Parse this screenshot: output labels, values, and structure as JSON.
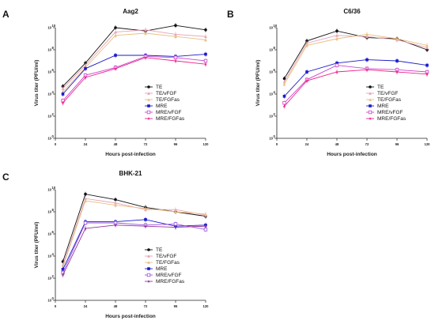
{
  "chart_data": [
    {
      "type": "line",
      "panel_label": "A",
      "title": "Aag2",
      "xlabel": "Hours post-infection",
      "ylabel": "Virus titer (PFU/ml)",
      "x": [
        6,
        24,
        48,
        72,
        96,
        120
      ],
      "x_ticks": [
        "0",
        "24",
        "48",
        "72",
        "96",
        "120"
      ],
      "ylim_log10": [
        0,
        10
      ],
      "yscale": "log",
      "series": [
        {
          "name": "TE",
          "color": "#111111",
          "marker": "circle",
          "values": [
            4.7,
            6.8,
            10.0,
            9.7,
            10.2,
            9.8
          ]
        },
        {
          "name": "TE/vFGF",
          "color": "#e8a0b4",
          "marker": "triangle",
          "values": [
            4.5,
            6.6,
            9.6,
            9.8,
            9.4,
            9.2
          ]
        },
        {
          "name": "TE/FGFas",
          "color": "#e8c080",
          "marker": "triangle",
          "values": [
            4.2,
            6.4,
            9.3,
            9.5,
            9.2,
            8.9
          ]
        },
        {
          "name": "MRE",
          "color": "#1a1acc",
          "marker": "square",
          "values": [
            4.0,
            6.3,
            7.5,
            7.5,
            7.4,
            7.6
          ]
        },
        {
          "name": "MRE/vFGF",
          "color": "#cc44cc",
          "marker": "square-open",
          "values": [
            3.4,
            5.7,
            6.4,
            7.4,
            7.3,
            7.0
          ]
        },
        {
          "name": "MRE/FGFas",
          "color": "#ee2288",
          "marker": "star",
          "values": [
            3.2,
            5.5,
            6.3,
            7.3,
            7.0,
            6.7
          ]
        }
      ]
    },
    {
      "type": "line",
      "panel_label": "B",
      "title": "C6/36",
      "xlabel": "Hours post-infection",
      "ylabel": "Virus titer (PFU/ml)",
      "x": [
        6,
        24,
        48,
        72,
        96,
        120
      ],
      "x_ticks": [
        "0",
        "24",
        "48",
        "72",
        "96",
        "120"
      ],
      "ylim_log10": [
        0,
        10
      ],
      "yscale": "log",
      "series": [
        {
          "name": "TE",
          "color": "#111111",
          "marker": "circle",
          "values": [
            5.4,
            8.8,
            9.7,
            9.1,
            9.0,
            8.0
          ]
        },
        {
          "name": "TE/vFGF",
          "color": "#e8a0b4",
          "marker": "triangle",
          "values": [
            5.1,
            8.6,
            9.3,
            9.2,
            8.9,
            8.2
          ]
        },
        {
          "name": "TE/FGFas",
          "color": "#e8c080",
          "marker": "triangle",
          "values": [
            4.9,
            8.4,
            9.0,
            9.4,
            9.0,
            8.4
          ]
        },
        {
          "name": "MRE",
          "color": "#1a1acc",
          "marker": "square",
          "values": [
            3.8,
            6.0,
            6.8,
            7.1,
            7.0,
            6.6
          ]
        },
        {
          "name": "MRE/vFGF",
          "color": "#cc44cc",
          "marker": "square-open",
          "values": [
            3.2,
            5.3,
            6.6,
            6.3,
            6.2,
            6.0
          ]
        },
        {
          "name": "MRE/FGFas",
          "color": "#ee2288",
          "marker": "star",
          "values": [
            2.9,
            5.2,
            6.0,
            6.2,
            6.0,
            5.8
          ]
        }
      ]
    },
    {
      "type": "line",
      "panel_label": "C",
      "title": "BHK-21",
      "xlabel": "Hours post-infection",
      "ylabel": "Virus titer (PFU/ml)",
      "x": [
        6,
        24,
        48,
        72,
        96,
        120
      ],
      "x_ticks": [
        "0",
        "24",
        "48",
        "72",
        "96",
        "120"
      ],
      "ylim_log10": [
        0,
        10
      ],
      "yscale": "log",
      "series": [
        {
          "name": "TE",
          "color": "#111111",
          "marker": "circle",
          "values": [
            3.5,
            9.6,
            9.1,
            8.4,
            8.0,
            7.6
          ]
        },
        {
          "name": "TE/vFGF",
          "color": "#e8a0b4",
          "marker": "triangle",
          "values": [
            3.2,
            9.2,
            8.8,
            8.2,
            8.2,
            7.7
          ]
        },
        {
          "name": "TE/FGFas",
          "color": "#e8c080",
          "marker": "triangle",
          "values": [
            3.0,
            9.0,
            8.6,
            8.3,
            8.0,
            7.8
          ]
        },
        {
          "name": "MRE",
          "color": "#1a1acc",
          "marker": "square",
          "values": [
            2.8,
            7.1,
            7.1,
            7.3,
            6.7,
            6.8
          ]
        },
        {
          "name": "MRE/vFGF",
          "color": "#9955dd",
          "marker": "square-open",
          "values": [
            2.5,
            7.0,
            7.0,
            6.8,
            6.9,
            6.4
          ]
        },
        {
          "name": "MRE/FGFas",
          "color": "#993399",
          "marker": "star",
          "values": [
            2.3,
            6.5,
            6.8,
            6.7,
            6.6,
            6.7
          ]
        }
      ]
    }
  ]
}
